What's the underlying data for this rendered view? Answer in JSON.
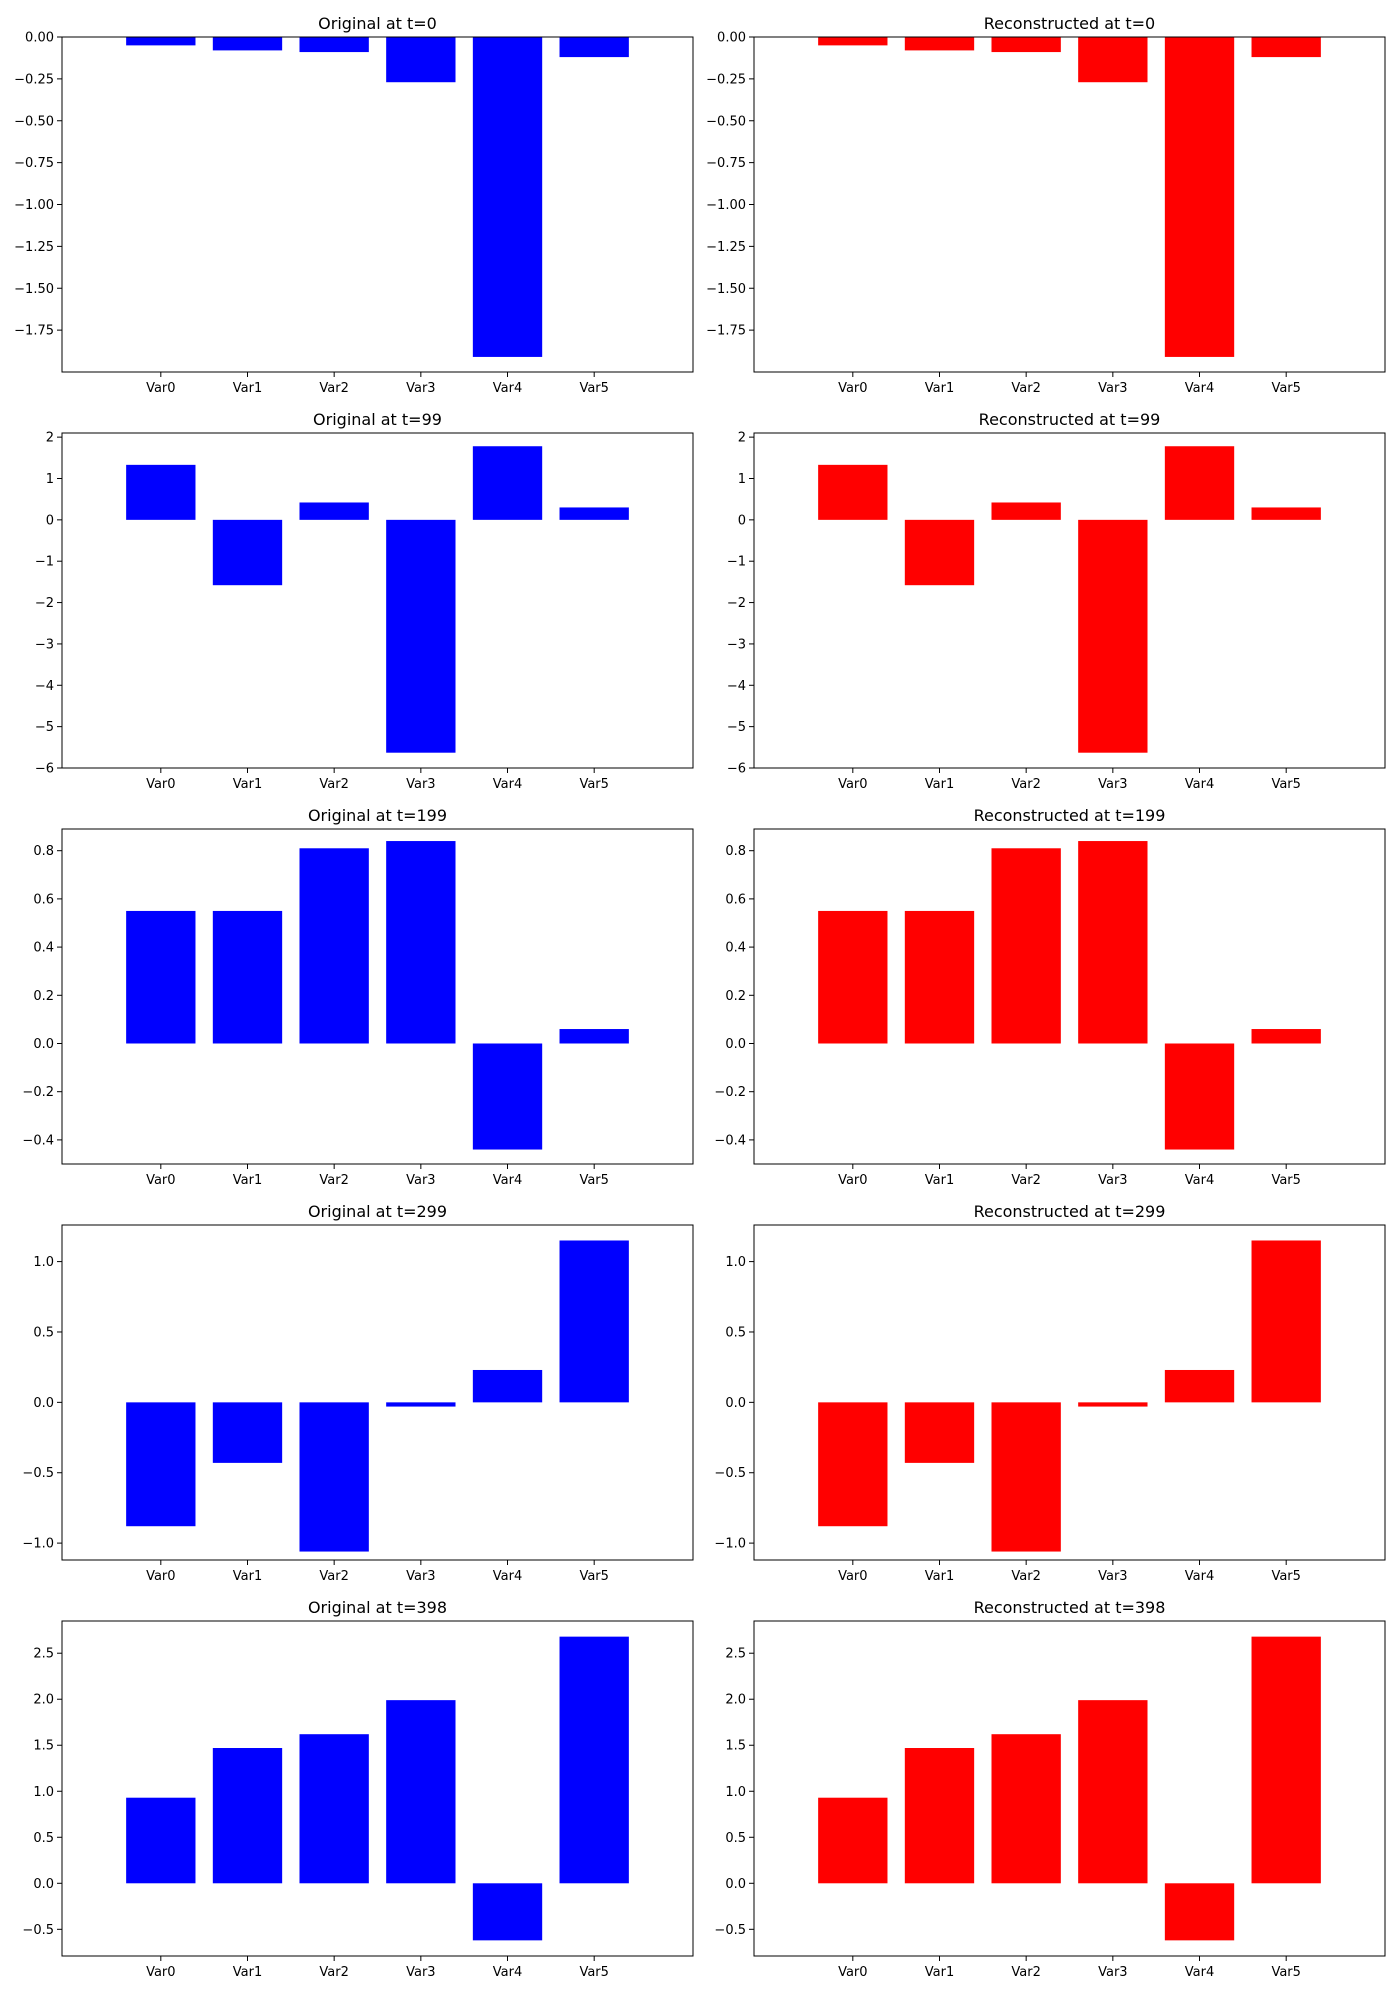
{
  "figure": {
    "background": "#ffffff"
  },
  "chart_data": [
    {
      "type": "bar",
      "title": "Original at t=0",
      "color": "#0000ff",
      "categories": [
        "Var0",
        "Var1",
        "Var2",
        "Var3",
        "Var4",
        "Var5"
      ],
      "values": [
        -0.05,
        -0.08,
        -0.09,
        -0.27,
        -1.91,
        -0.12
      ],
      "ylim": [
        -2.0,
        0.0
      ],
      "yticks": [
        0.0,
        -0.25,
        -0.5,
        -0.75,
        -1.0,
        -1.25,
        -1.5,
        -1.75
      ],
      "ytick_labels": [
        "0.00",
        "−0.25",
        "−0.50",
        "−0.75",
        "−1.00",
        "−1.25",
        "−1.50",
        "−1.75"
      ]
    },
    {
      "type": "bar",
      "title": "Reconstructed at t=0",
      "color": "#ff0000",
      "categories": [
        "Var0",
        "Var1",
        "Var2",
        "Var3",
        "Var4",
        "Var5"
      ],
      "values": [
        -0.05,
        -0.08,
        -0.09,
        -0.27,
        -1.91,
        -0.12
      ],
      "ylim": [
        -2.0,
        0.0
      ],
      "yticks": [
        0.0,
        -0.25,
        -0.5,
        -0.75,
        -1.0,
        -1.25,
        -1.5,
        -1.75
      ],
      "ytick_labels": [
        "0.00",
        "−0.25",
        "−0.50",
        "−0.75",
        "−1.00",
        "−1.25",
        "−1.50",
        "−1.75"
      ]
    },
    {
      "type": "bar",
      "title": "Original at t=99",
      "color": "#0000ff",
      "categories": [
        "Var0",
        "Var1",
        "Var2",
        "Var3",
        "Var4",
        "Var5"
      ],
      "values": [
        1.33,
        -1.58,
        0.42,
        -5.63,
        1.78,
        0.3
      ],
      "ylim": [
        -6.0,
        2.1
      ],
      "yticks": [
        2,
        1,
        0,
        -1,
        -2,
        -3,
        -4,
        -5,
        -6
      ],
      "ytick_labels": [
        "2",
        "1",
        "0",
        "−1",
        "−2",
        "−3",
        "−4",
        "−5",
        "−6"
      ]
    },
    {
      "type": "bar",
      "title": "Reconstructed at t=99",
      "color": "#ff0000",
      "categories": [
        "Var0",
        "Var1",
        "Var2",
        "Var3",
        "Var4",
        "Var5"
      ],
      "values": [
        1.33,
        -1.58,
        0.42,
        -5.63,
        1.78,
        0.3
      ],
      "ylim": [
        -6.0,
        2.1
      ],
      "yticks": [
        2,
        1,
        0,
        -1,
        -2,
        -3,
        -4,
        -5,
        -6
      ],
      "ytick_labels": [
        "2",
        "1",
        "0",
        "−1",
        "−2",
        "−3",
        "−4",
        "−5",
        "−6"
      ]
    },
    {
      "type": "bar",
      "title": "Original at t=199",
      "color": "#0000ff",
      "categories": [
        "Var0",
        "Var1",
        "Var2",
        "Var3",
        "Var4",
        "Var5"
      ],
      "values": [
        0.55,
        0.55,
        0.81,
        0.84,
        -0.44,
        0.06
      ],
      "ylim": [
        -0.5,
        0.89
      ],
      "yticks": [
        0.8,
        0.6,
        0.4,
        0.2,
        0.0,
        -0.2,
        -0.4
      ],
      "ytick_labels": [
        "0.8",
        "0.6",
        "0.4",
        "0.2",
        "0.0",
        "−0.2",
        "−0.4"
      ]
    },
    {
      "type": "bar",
      "title": "Reconstructed at t=199",
      "color": "#ff0000",
      "categories": [
        "Var0",
        "Var1",
        "Var2",
        "Var3",
        "Var4",
        "Var5"
      ],
      "values": [
        0.55,
        0.55,
        0.81,
        0.84,
        -0.44,
        0.06
      ],
      "ylim": [
        -0.5,
        0.89
      ],
      "yticks": [
        0.8,
        0.6,
        0.4,
        0.2,
        0.0,
        -0.2,
        -0.4
      ],
      "ytick_labels": [
        "0.8",
        "0.6",
        "0.4",
        "0.2",
        "0.0",
        "−0.2",
        "−0.4"
      ]
    },
    {
      "type": "bar",
      "title": "Original at t=299",
      "color": "#0000ff",
      "categories": [
        "Var0",
        "Var1",
        "Var2",
        "Var3",
        "Var4",
        "Var5"
      ],
      "values": [
        -0.88,
        -0.43,
        -1.06,
        -0.03,
        0.23,
        1.15
      ],
      "ylim": [
        -1.12,
        1.26
      ],
      "yticks": [
        1.0,
        0.5,
        0.0,
        -0.5,
        -1.0
      ],
      "ytick_labels": [
        "1.0",
        "0.5",
        "0.0",
        "−0.5",
        "−1.0"
      ]
    },
    {
      "type": "bar",
      "title": "Reconstructed at t=299",
      "color": "#ff0000",
      "categories": [
        "Var0",
        "Var1",
        "Var2",
        "Var3",
        "Var4",
        "Var5"
      ],
      "values": [
        -0.88,
        -0.43,
        -1.06,
        -0.03,
        0.23,
        1.15
      ],
      "ylim": [
        -1.12,
        1.26
      ],
      "yticks": [
        1.0,
        0.5,
        0.0,
        -0.5,
        -1.0
      ],
      "ytick_labels": [
        "1.0",
        "0.5",
        "0.0",
        "−0.5",
        "−1.0"
      ]
    },
    {
      "type": "bar",
      "title": "Original at t=398",
      "color": "#0000ff",
      "categories": [
        "Var0",
        "Var1",
        "Var2",
        "Var3",
        "Var4",
        "Var5"
      ],
      "values": [
        0.93,
        1.47,
        1.62,
        1.99,
        -0.62,
        2.68
      ],
      "ylim": [
        -0.79,
        2.85
      ],
      "yticks": [
        2.5,
        2.0,
        1.5,
        1.0,
        0.5,
        0.0,
        -0.5
      ],
      "ytick_labels": [
        "2.5",
        "2.0",
        "1.5",
        "1.0",
        "0.5",
        "0.0",
        "−0.5"
      ]
    },
    {
      "type": "bar",
      "title": "Reconstructed at t=398",
      "color": "#ff0000",
      "categories": [
        "Var0",
        "Var1",
        "Var2",
        "Var3",
        "Var4",
        "Var5"
      ],
      "values": [
        0.93,
        1.47,
        1.62,
        1.99,
        -0.62,
        2.68
      ],
      "ylim": [
        -0.79,
        2.85
      ],
      "yticks": [
        2.5,
        2.0,
        1.5,
        1.0,
        0.5,
        0.0,
        -0.5
      ],
      "ytick_labels": [
        "2.5",
        "2.0",
        "1.5",
        "1.0",
        "0.5",
        "0.0",
        "−0.5"
      ]
    }
  ]
}
